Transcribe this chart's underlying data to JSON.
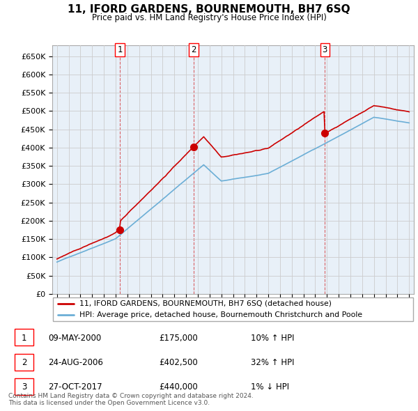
{
  "title": "11, IFORD GARDENS, BOURNEMOUTH, BH7 6SQ",
  "subtitle": "Price paid vs. HM Land Registry's House Price Index (HPI)",
  "ylabel_values": [
    "£0",
    "£50K",
    "£100K",
    "£150K",
    "£200K",
    "£250K",
    "£300K",
    "£350K",
    "£400K",
    "£450K",
    "£500K",
    "£550K",
    "£600K",
    "£650K"
  ],
  "ylim": [
    0,
    680000
  ],
  "yticks": [
    0,
    50000,
    100000,
    150000,
    200000,
    250000,
    300000,
    350000,
    400000,
    450000,
    500000,
    550000,
    600000,
    650000
  ],
  "sale_dates_num": [
    2000.36,
    2006.65,
    2017.82
  ],
  "sale_prices": [
    175000,
    402500,
    440000
  ],
  "sale_labels": [
    "1",
    "2",
    "3"
  ],
  "legend_line1": "11, IFORD GARDENS, BOURNEMOUTH, BH7 6SQ (detached house)",
  "legend_line2": "HPI: Average price, detached house, Bournemouth Christchurch and Poole",
  "table_data": [
    [
      "1",
      "09-MAY-2000",
      "£175,000",
      "10% ↑ HPI"
    ],
    [
      "2",
      "24-AUG-2006",
      "£402,500",
      "32% ↑ HPI"
    ],
    [
      "3",
      "27-OCT-2017",
      "£440,000",
      "1% ↓ HPI"
    ]
  ],
  "footnote": "Contains HM Land Registry data © Crown copyright and database right 2024.\nThis data is licensed under the Open Government Licence v3.0.",
  "hpi_color": "#6baed6",
  "hpi_fill_color": "#ddeeff",
  "price_color": "#cc0000",
  "bg_color": "#ffffff",
  "chart_bg_color": "#e8f0f8",
  "grid_color": "#cccccc"
}
